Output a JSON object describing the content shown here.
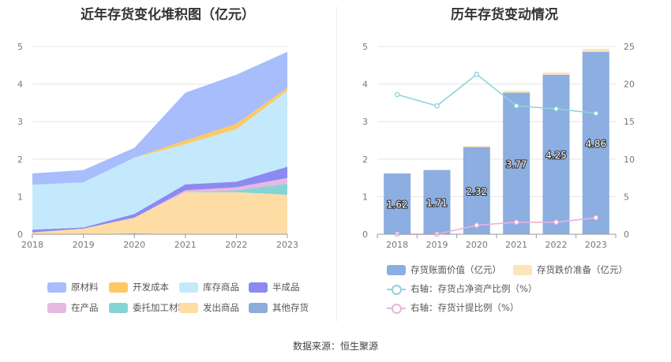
{
  "source_text": "数据来源：恒生聚源",
  "chart_data": [
    {
      "type": "area",
      "stacked": true,
      "title": "近年存货变化堆积图（亿元）",
      "x": [
        "2018",
        "2019",
        "2020",
        "2021",
        "2022",
        "2023"
      ],
      "ylim": [
        0,
        5
      ],
      "yticks": [
        "0",
        "1",
        "2",
        "3",
        "4",
        "5"
      ],
      "grid": true,
      "legend_position": "bottom",
      "series": [
        {
          "name": "其他存货",
          "color": "#8eacd9",
          "values": [
            0.0,
            0.0,
            0.02,
            0.0,
            0.0,
            0.0
          ]
        },
        {
          "name": "发出商品",
          "color": "#fedda5",
          "values": [
            0.05,
            0.15,
            0.42,
            1.12,
            1.12,
            1.05
          ]
        },
        {
          "name": "委托加工材料",
          "color": "#86d3d6",
          "values": [
            0.0,
            0.0,
            0.0,
            0.0,
            0.05,
            0.3
          ]
        },
        {
          "name": "在产品",
          "color": "#e7b8e0",
          "values": [
            0.0,
            0.0,
            0.0,
            0.05,
            0.08,
            0.15
          ]
        },
        {
          "name": "半成品",
          "color": "#8c8af0",
          "values": [
            0.07,
            0.03,
            0.1,
            0.16,
            0.15,
            0.3
          ]
        },
        {
          "name": "库存商品",
          "color": "#c4e9fc",
          "values": [
            1.2,
            1.2,
            1.5,
            1.07,
            1.4,
            2.02
          ]
        },
        {
          "name": "开发成本",
          "color": "#fec962",
          "values": [
            0.0,
            0.0,
            0.0,
            0.1,
            0.14,
            0.08
          ]
        },
        {
          "name": "原材料",
          "color": "#a8bdfb",
          "values": [
            0.3,
            0.33,
            0.26,
            1.27,
            1.31,
            0.96
          ]
        }
      ],
      "legend_order": [
        "原材料",
        "开发成本",
        "库存商品",
        "半成品",
        "在产品",
        "委托加工材料",
        "发出商品",
        "其他存货"
      ]
    },
    {
      "type": "bar",
      "title": "历年存货变动情况",
      "categories": [
        "2018",
        "2019",
        "2020",
        "2021",
        "2022",
        "2023"
      ],
      "ylim": [
        0,
        5
      ],
      "yticks": [
        "0",
        "1",
        "2",
        "3",
        "4",
        "5"
      ],
      "y2lim": [
        0,
        25
      ],
      "y2ticks": [
        "0",
        "5",
        "10",
        "15",
        "20",
        "25"
      ],
      "grid": true,
      "legend_position": "bottom",
      "bar_series": [
        {
          "name": "存货账面价值（亿元）",
          "color": "#8caee0",
          "values": [
            1.62,
            1.71,
            2.32,
            3.77,
            4.25,
            4.86
          ],
          "labels": [
            "1.62",
            "1.71",
            "2.32",
            "3.77",
            "4.25",
            "4.86"
          ]
        },
        {
          "name": "存货跌价准备（亿元）",
          "color": "#fde4bd",
          "values": [
            0.0,
            0.0,
            0.03,
            0.05,
            0.06,
            0.08
          ]
        }
      ],
      "line_series": [
        {
          "name": "右轴：存货占净资产比例（%）",
          "color": "#8dd4dc",
          "values": [
            18.6,
            17.1,
            21.3,
            17.1,
            16.7,
            16.1
          ]
        },
        {
          "name": "右轴：存货计提比例（%）",
          "color": "#e9b3d9",
          "values": [
            0.0,
            0.0,
            1.2,
            1.6,
            1.6,
            2.2
          ]
        }
      ]
    }
  ]
}
